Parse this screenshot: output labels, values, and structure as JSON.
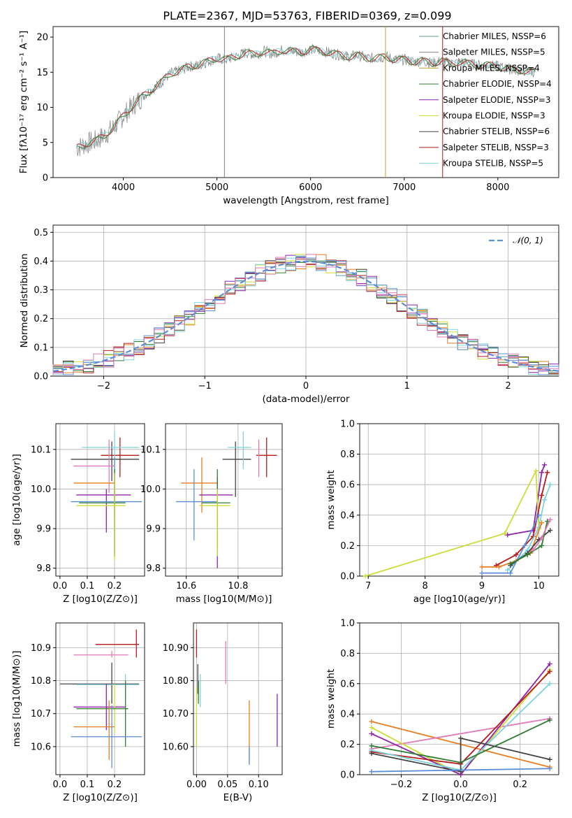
{
  "colors": [
    "#5f9e8f",
    "#808080",
    "#c8a030",
    "#2e7d32",
    "#8e24aa",
    "#cddc39",
    "#444444",
    "#b71c1c",
    "#7fd3dd"
  ],
  "chart_data": [
    {
      "type": "line",
      "title": "PLATE=2367, MJD=53763, FIBERID=0369, z=0.099",
      "xlabel": "wavelength [Angstrom, rest frame]",
      "ylabel": "Flux [fλ10⁻¹⁷ erg cm⁻² s⁻¹ A⁻¹]",
      "xlim": [
        3250,
        8650
      ],
      "ylim": [
        0,
        21.5
      ],
      "xticks": [
        4000,
        5000,
        6000,
        7000,
        8000
      ],
      "yticks": [
        0,
        5,
        10,
        15,
        20
      ],
      "legend_placement": "top-right",
      "legend": [
        {
          "name": "Chabrier MILES, NSSP=6",
          "color": "#5f9e8f"
        },
        {
          "name": "Salpeter MILES, NSSP=5",
          "color": "#808080"
        },
        {
          "name": "Kroupa MILES, NSSP=4",
          "color": "#c8a030"
        },
        {
          "name": "Chabrier ELODIE, NSSP=4",
          "color": "#2e7d32"
        },
        {
          "name": "Salpeter ELODIE, NSSP=3",
          "color": "#8e24aa"
        },
        {
          "name": "Kroupa ELODIE, NSSP=3",
          "color": "#cddc39"
        },
        {
          "name": "Chabrier STELIB, NSSP=6",
          "color": "#444444"
        },
        {
          "name": "Salpeter STELIB, NSSP=3",
          "color": "#b71c1c"
        },
        {
          "name": "Kroupa STELIB, NSSP=5",
          "color": "#7fd3dd"
        }
      ],
      "x": [
        3500,
        3600,
        3700,
        3800,
        3900,
        4000,
        4100,
        4200,
        4300,
        4400,
        4500,
        4600,
        4700,
        4800,
        4900,
        5000,
        5100,
        5200,
        5300,
        5400,
        5500,
        5600,
        5700,
        5800,
        5900,
        6000,
        6100,
        6200,
        6300,
        6400,
        6500,
        6600,
        6700,
        6800,
        6900,
        7000,
        7100,
        7200,
        7300,
        7400,
        7500,
        7600,
        7700,
        7800,
        7900,
        8000,
        8100,
        8200,
        8300,
        8400
      ],
      "series": [
        {
          "name": "data",
          "values": [
            4.2,
            4.8,
            5.2,
            6.0,
            7.2,
            8.8,
            10.2,
            11.5,
            12.5,
            13.5,
            14.8,
            15.2,
            15.8,
            16.0,
            16.5,
            17.0,
            16.8,
            17.2,
            17.8,
            17.5,
            18.0,
            17.6,
            18.2,
            18.0,
            17.8,
            18.3,
            18.0,
            17.8,
            17.5,
            17.2,
            17.4,
            17.0,
            17.0,
            17.2,
            16.8,
            16.8,
            16.5,
            16.6,
            16.3,
            16.6,
            16.2,
            16.5,
            16.2,
            16.0,
            16.0,
            15.8,
            15.5,
            15.3,
            15.2,
            15.0
          ]
        }
      ]
    },
    {
      "type": "line",
      "xlabel": "(data-model)/error",
      "ylabel": "Normed distribution",
      "xlim": [
        -2.5,
        2.5
      ],
      "ylim": [
        0,
        0.525
      ],
      "xticks": [
        -2,
        -1,
        0,
        1,
        2
      ],
      "yticks": [
        0.0,
        0.1,
        0.2,
        0.3,
        0.4,
        0.5
      ],
      "legend_placement": "top-right",
      "series": [
        {
          "name": "𝒩(0, 1)",
          "color": "#5b8ed6"
        }
      ]
    },
    {
      "type": "scatter",
      "xlabel": "Z [log10(Z/Z⊙)]",
      "ylabel": "age  [log10(age/yr)]",
      "xlim": [
        -0.015,
        0.31
      ],
      "ylim": [
        9.78,
        10.165
      ],
      "xticks": [
        0.0,
        0.1,
        0.2
      ],
      "yticks": [
        9.8,
        9.9,
        10.0,
        10.1
      ],
      "points": [
        {
          "x": 0.22,
          "x0": 0.15,
          "x1": 0.29,
          "y": 10.085,
          "y0": 10.03,
          "y1": 10.13,
          "color": "#b71c1c"
        },
        {
          "x": 0.19,
          "x0": 0.04,
          "x1": 0.29,
          "y": 10.075,
          "y0": 10.02,
          "y1": 10.12,
          "color": "#444444"
        },
        {
          "x": 0.2,
          "x0": 0.08,
          "x1": 0.29,
          "y": 10.105,
          "y0": 10.06,
          "y1": 10.145,
          "color": "#7fd3dd"
        },
        {
          "x": 0.18,
          "x0": 0.05,
          "x1": 0.2,
          "y": 10.058,
          "y0": 9.99,
          "y1": 10.125,
          "color": "#e07ab8"
        },
        {
          "x": 0.2,
          "x0": 0.05,
          "x1": 0.2,
          "y": 10.015,
          "y0": 9.93,
          "y1": 10.04,
          "color": "#e67e22"
        },
        {
          "x": 0.17,
          "x0": 0.06,
          "x1": 0.26,
          "y": 9.985,
          "y0": 9.89,
          "y1": 10.0,
          "color": "#8e24aa"
        },
        {
          "x": 0.2,
          "x0": 0.04,
          "x1": 0.3,
          "y": 9.968,
          "y0": 9.83,
          "y1": 10.08,
          "color": "#5b8ed6"
        },
        {
          "x": 0.2,
          "x0": 0.07,
          "x1": 0.24,
          "y": 9.965,
          "y0": 9.83,
          "y1": 10.05,
          "color": "#2e7d32"
        },
        {
          "x": 0.2,
          "x0": 0.06,
          "x1": 0.24,
          "y": 9.958,
          "y0": 9.82,
          "y1": 10.04,
          "color": "#cddc39"
        }
      ]
    },
    {
      "type": "scatter",
      "xlabel": "mass [log10(M/M⊙)]",
      "xlim": [
        10.52,
        10.97
      ],
      "ylim": [
        9.78,
        10.165
      ],
      "xticks": [
        10.6,
        10.8
      ],
      "yticks": [
        9.8,
        9.9,
        10.0,
        10.1
      ],
      "points": [
        {
          "x": 10.91,
          "x0": 10.87,
          "x1": 10.95,
          "y": 10.085,
          "y0": 10.03,
          "y1": 10.13,
          "color": "#b71c1c"
        },
        {
          "x": 10.79,
          "x0": 10.74,
          "x1": 10.85,
          "y": 10.075,
          "y0": 9.98,
          "y1": 10.12,
          "color": "#444444"
        },
        {
          "x": 10.82,
          "x0": 10.76,
          "x1": 10.85,
          "y": 10.105,
          "y0": 10.05,
          "y1": 10.145,
          "color": "#7fd3dd"
        },
        {
          "x": 10.88,
          "x0": 10.88,
          "x1": 10.88,
          "y": 10.085,
          "y0": 10.03,
          "y1": 10.125,
          "color": "#e07ab8"
        },
        {
          "x": 10.66,
          "x0": 10.58,
          "x1": 10.72,
          "y": 10.015,
          "y0": 9.94,
          "y1": 10.08,
          "color": "#e67e22"
        },
        {
          "x": 10.72,
          "x0": 10.65,
          "x1": 10.78,
          "y": 9.985,
          "y0": 9.8,
          "y1": 10.03,
          "color": "#8e24aa"
        },
        {
          "x": 10.63,
          "x0": 10.56,
          "x1": 10.72,
          "y": 9.968,
          "y0": 9.87,
          "y1": 10.05,
          "color": "#5b8ed6"
        },
        {
          "x": 10.72,
          "x0": 10.66,
          "x1": 10.77,
          "y": 9.965,
          "y0": 9.85,
          "y1": 10.05,
          "color": "#2e7d32"
        },
        {
          "x": 10.72,
          "x0": 10.65,
          "x1": 10.77,
          "y": 9.958,
          "y0": 9.83,
          "y1": 10.0,
          "color": "#cddc39"
        }
      ]
    },
    {
      "type": "line",
      "xlabel": "age  [log10(age/yr)]",
      "ylabel": "mass weight",
      "xlim": [
        6.85,
        10.35
      ],
      "ylim": [
        0,
        1.0
      ],
      "xticks": [
        7,
        8,
        9,
        10
      ],
      "yticks": [
        0.0,
        0.2,
        0.4,
        0.6,
        0.8,
        1.0
      ],
      "series": [
        {
          "name": "",
          "color": "#8e24aa",
          "x": [
            9.45,
            9.9,
            10.05,
            10.1
          ],
          "values": [
            0.27,
            0.3,
            0.68,
            0.73
          ]
        },
        {
          "name": "",
          "color": "#cddc39",
          "x": [
            6.95,
            9.4,
            9.95,
            10.0
          ],
          "values": [
            0.0,
            0.28,
            0.69,
            0.31
          ]
        },
        {
          "name": "",
          "color": "#b71c1c",
          "x": [
            9.25,
            9.6,
            9.9,
            10.05,
            10.15
          ],
          "values": [
            0.07,
            0.14,
            0.26,
            0.53,
            0.68
          ]
        },
        {
          "name": "",
          "color": "#7fd3dd",
          "x": [
            9.45,
            9.8,
            10.0,
            10.1,
            10.2
          ],
          "values": [
            0.04,
            0.17,
            0.32,
            0.5,
            0.6
          ]
        },
        {
          "name": "",
          "color": "#e67e22",
          "x": [
            9.0,
            9.3,
            9.6,
            9.85,
            10.05
          ],
          "values": [
            0.06,
            0.06,
            0.1,
            0.15,
            0.35
          ]
        },
        {
          "name": "",
          "color": "#444444",
          "x": [
            9.5,
            9.8,
            10.0,
            10.2
          ],
          "values": [
            0.07,
            0.15,
            0.24,
            0.3
          ]
        },
        {
          "name": "",
          "color": "#5b8ed6",
          "x": [
            9.0,
            9.5,
            9.75,
            10.0
          ],
          "values": [
            0.02,
            0.02,
            0.2,
            0.4
          ]
        },
        {
          "name": "",
          "color": "#2e7d32",
          "x": [
            9.5,
            9.8,
            10.05,
            10.15
          ],
          "values": [
            0.08,
            0.14,
            0.2,
            0.36
          ]
        },
        {
          "name": "",
          "color": "#e07ab8",
          "x": [
            9.9,
            10.05,
            10.2
          ],
          "values": [
            0.17,
            0.25,
            0.37
          ]
        }
      ]
    },
    {
      "type": "scatter",
      "xlabel": "Z [log10(Z/Z⊙)]",
      "ylabel": "mass [log10(M/M⊙)]",
      "xlim": [
        -0.015,
        0.31
      ],
      "ylim": [
        10.515,
        10.975
      ],
      "xticks": [
        0.0,
        0.1,
        0.2
      ],
      "yticks": [
        10.6,
        10.7,
        10.8,
        10.9
      ],
      "points": [
        {
          "x": 0.28,
          "x0": 0.13,
          "x1": 0.29,
          "y": 10.91,
          "y0": 10.87,
          "y1": 10.955,
          "color": "#b71c1c"
        },
        {
          "x": 0.19,
          "x0": 0.05,
          "x1": 0.25,
          "y": 10.878,
          "y0": 10.87,
          "y1": 10.89,
          "color": "#e07ab8"
        },
        {
          "x": 0.19,
          "x0": 0.0,
          "x1": 0.29,
          "y": 10.79,
          "y0": 10.73,
          "y1": 10.855,
          "color": "#444444"
        },
        {
          "x": 0.24,
          "x0": 0.06,
          "x1": 0.29,
          "y": 10.788,
          "y0": 10.74,
          "y1": 10.82,
          "color": "#7fd3dd"
        },
        {
          "x": 0.17,
          "x0": 0.05,
          "x1": 0.24,
          "y": 10.72,
          "y0": 10.65,
          "y1": 10.79,
          "color": "#8e24aa"
        },
        {
          "x": 0.2,
          "x0": 0.07,
          "x1": 0.25,
          "y": 10.715,
          "y0": 10.64,
          "y1": 10.79,
          "color": "#cddc39"
        },
        {
          "x": 0.24,
          "x0": 0.06,
          "x1": 0.25,
          "y": 10.715,
          "y0": 10.6,
          "y1": 10.8,
          "color": "#2e7d32"
        },
        {
          "x": 0.18,
          "x0": 0.05,
          "x1": 0.2,
          "y": 10.66,
          "y0": 10.56,
          "y1": 10.74,
          "color": "#e67e22"
        },
        {
          "x": 0.19,
          "x0": 0.04,
          "x1": 0.3,
          "y": 10.63,
          "y0": 10.535,
          "y1": 10.725,
          "color": "#5b8ed6"
        }
      ]
    },
    {
      "type": "scatter",
      "xlabel": "E(B-V)",
      "xlim": [
        -0.005,
        0.138
      ],
      "ylim": [
        10.515,
        10.975
      ],
      "xticks": [
        0.0,
        0.05,
        0.1
      ],
      "yticks": [
        10.6,
        10.7,
        10.8,
        10.9
      ],
      "points": [
        {
          "x": 0.0,
          "y0": 10.87,
          "y1": 10.955,
          "color": "#b71c1c"
        },
        {
          "x": 0.002,
          "y0": 10.76,
          "y1": 10.85,
          "color": "#444444"
        },
        {
          "x": 0.006,
          "y0": 10.72,
          "y1": 10.82,
          "color": "#7fd3dd"
        },
        {
          "x": 0.0,
          "y0": 10.6,
          "y1": 10.78,
          "color": "#cddc39"
        },
        {
          "x": 0.003,
          "y0": 10.73,
          "y1": 10.8,
          "color": "#2e7d32"
        },
        {
          "x": 0.047,
          "y0": 10.79,
          "y1": 10.92,
          "color": "#e07ab8"
        },
        {
          "x": 0.085,
          "y0": 10.55,
          "y1": 10.74,
          "color": "#e67e22"
        },
        {
          "x": 0.085,
          "y0": 10.545,
          "y1": 10.6,
          "color": "#5b8ed6"
        },
        {
          "x": 0.13,
          "y0": 10.6,
          "y1": 10.76,
          "color": "#8e24aa"
        }
      ]
    },
    {
      "type": "line",
      "xlabel": "Z [log10(Z/Z⊙)]",
      "ylabel": "mass weight",
      "xlim": [
        -0.34,
        0.33
      ],
      "ylim": [
        0,
        1.0
      ],
      "xticks": [
        -0.2,
        0.0,
        0.2
      ],
      "yticks": [
        0.0,
        0.2,
        0.4,
        0.6,
        0.8,
        1.0
      ],
      "series": [
        {
          "name": "",
          "color": "#e67e22",
          "x": [
            -0.3,
            0.3
          ],
          "values": [
            0.35,
            0.05
          ]
        },
        {
          "name": "",
          "color": "#e07ab8",
          "x": [
            -0.3,
            0.3
          ],
          "values": [
            0.17,
            0.37
          ]
        },
        {
          "name": "",
          "color": "#cddc39",
          "x": [
            -0.3,
            0.0,
            0.3
          ],
          "values": [
            0.31,
            0.0,
            0.69
          ]
        },
        {
          "name": "",
          "color": "#8e24aa",
          "x": [
            -0.3,
            0.0,
            0.3
          ],
          "values": [
            0.27,
            0.0,
            0.73
          ]
        },
        {
          "name": "",
          "color": "#b71c1c",
          "x": [
            -0.3,
            0.0,
            0.3
          ],
          "values": [
            0.15,
            0.07,
            0.68
          ]
        },
        {
          "name": "",
          "color": "#7fd3dd",
          "x": [
            -0.3,
            0.0,
            0.3
          ],
          "values": [
            0.16,
            0.03,
            0.6
          ]
        },
        {
          "name": "",
          "color": "#2e7d32",
          "x": [
            -0.3,
            0.0,
            0.3
          ],
          "values": [
            0.19,
            0.08,
            0.36
          ]
        },
        {
          "name": "",
          "color": "#444444",
          "x": [
            -0.3,
            0.0,
            0.0,
            0.3
          ],
          "values": [
            0.14,
            0.02,
            0.24,
            0.1
          ]
        },
        {
          "name": "",
          "color": "#5b8ed6",
          "x": [
            -0.3,
            0.3
          ],
          "values": [
            0.02,
            0.04
          ]
        }
      ]
    }
  ]
}
